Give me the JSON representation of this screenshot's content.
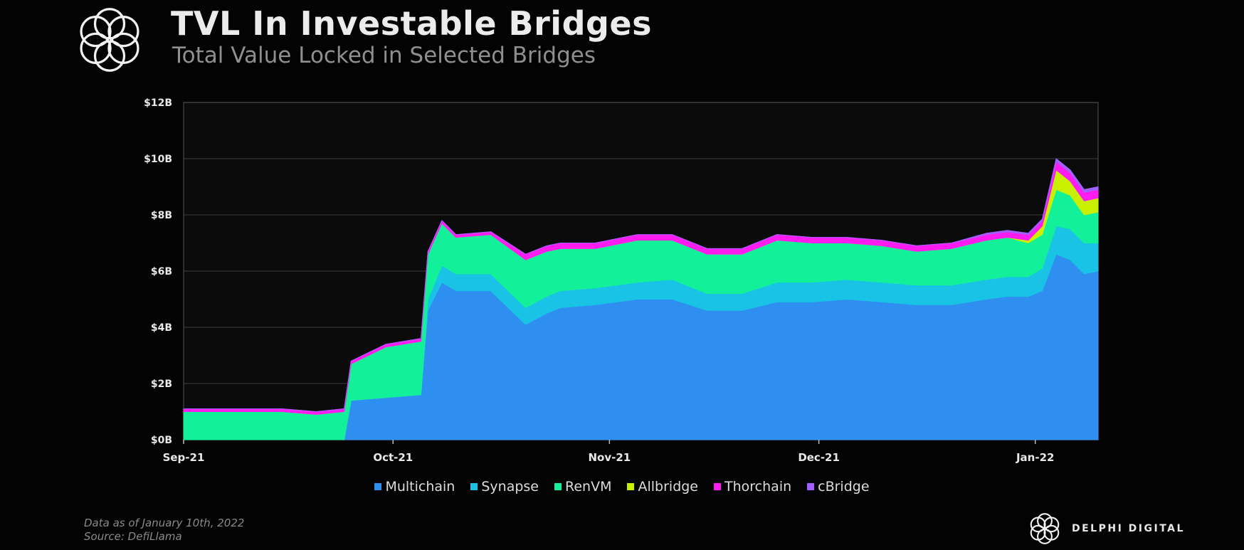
{
  "header": {
    "title": "TVL In Investable Bridges",
    "subtitle": "Total Value Locked in Selected Bridges"
  },
  "chart_data": {
    "type": "area",
    "stacked": true,
    "title": "TVL In Investable Bridges",
    "subtitle": "Total Value Locked in Selected Bridges",
    "x_ticks": [
      "Sep-21",
      "Oct-21",
      "Nov-21",
      "Dec-21",
      "Jan-22"
    ],
    "y_ticks": [
      "$0B",
      "$2B",
      "$4B",
      "$6B",
      "$8B",
      "$10B",
      "$12B"
    ],
    "ylim": [
      0,
      12
    ],
    "y_unit": "$B",
    "grid": "horizontal",
    "legend_position": "bottom",
    "x": [
      "2021-09-01",
      "2021-09-05",
      "2021-09-10",
      "2021-09-15",
      "2021-09-20",
      "2021-09-24",
      "2021-09-25",
      "2021-09-30",
      "2021-10-05",
      "2021-10-06",
      "2021-10-08",
      "2021-10-10",
      "2021-10-15",
      "2021-10-20",
      "2021-10-23",
      "2021-10-25",
      "2021-10-30",
      "2021-11-05",
      "2021-11-10",
      "2021-11-15",
      "2021-11-20",
      "2021-11-25",
      "2021-11-30",
      "2021-12-05",
      "2021-12-10",
      "2021-12-15",
      "2021-12-20",
      "2021-12-25",
      "2021-12-28",
      "2021-12-31",
      "2022-01-02",
      "2022-01-04",
      "2022-01-06",
      "2022-01-08",
      "2022-01-10"
    ],
    "series": [
      {
        "name": "Multichain",
        "color": "#2f8ff0",
        "values": [
          0,
          0,
          0,
          0,
          0,
          0,
          1.4,
          1.5,
          1.6,
          4.6,
          5.6,
          5.3,
          5.3,
          4.1,
          4.5,
          4.7,
          4.8,
          5.0,
          5.0,
          4.6,
          4.6,
          4.9,
          4.9,
          5.0,
          4.9,
          4.8,
          4.8,
          5.0,
          5.1,
          5.1,
          5.3,
          6.6,
          6.4,
          5.9,
          6.0
        ]
      },
      {
        "name": "Synapse",
        "color": "#19c3e6",
        "values": [
          0,
          0,
          0,
          0,
          0,
          0,
          0,
          0,
          0,
          0.4,
          0.6,
          0.6,
          0.6,
          0.6,
          0.6,
          0.6,
          0.6,
          0.6,
          0.7,
          0.6,
          0.6,
          0.7,
          0.7,
          0.7,
          0.7,
          0.7,
          0.7,
          0.7,
          0.7,
          0.7,
          0.8,
          1.0,
          1.1,
          1.1,
          1.0
        ]
      },
      {
        "name": "RenVM",
        "color": "#13f09a",
        "values": [
          1.0,
          1.0,
          1.0,
          1.0,
          0.9,
          1.0,
          1.3,
          1.8,
          1.9,
          1.6,
          1.5,
          1.3,
          1.4,
          1.7,
          1.6,
          1.5,
          1.4,
          1.5,
          1.4,
          1.4,
          1.4,
          1.5,
          1.4,
          1.3,
          1.3,
          1.2,
          1.3,
          1.4,
          1.4,
          1.2,
          1.2,
          1.3,
          1.2,
          1.0,
          1.1
        ]
      },
      {
        "name": "Allbridge",
        "color": "#c8f000",
        "values": [
          0,
          0,
          0,
          0,
          0,
          0,
          0,
          0,
          0,
          0,
          0,
          0,
          0,
          0,
          0,
          0,
          0,
          0,
          0,
          0,
          0,
          0,
          0,
          0,
          0,
          0,
          0,
          0,
          0,
          0.1,
          0.3,
          0.7,
          0.5,
          0.5,
          0.5
        ]
      },
      {
        "name": "Thorchain",
        "color": "#ff1cf0",
        "values": [
          0.1,
          0.1,
          0.1,
          0.1,
          0.1,
          0.1,
          0.1,
          0.1,
          0.1,
          0.1,
          0.1,
          0.1,
          0.1,
          0.2,
          0.2,
          0.2,
          0.2,
          0.2,
          0.2,
          0.2,
          0.2,
          0.2,
          0.2,
          0.2,
          0.2,
          0.2,
          0.2,
          0.2,
          0.2,
          0.2,
          0.2,
          0.3,
          0.3,
          0.3,
          0.3
        ]
      },
      {
        "name": "cBridge",
        "color": "#a060ff",
        "values": [
          0,
          0,
          0,
          0,
          0,
          0,
          0,
          0,
          0,
          0,
          0,
          0,
          0,
          0,
          0,
          0,
          0,
          0,
          0,
          0,
          0,
          0,
          0,
          0,
          0,
          0,
          0,
          0.05,
          0.05,
          0.05,
          0.05,
          0.1,
          0.1,
          0.1,
          0.1
        ]
      }
    ]
  },
  "footer": {
    "note_line1": "Data as of January 10th, 2022",
    "note_line2": "Source: DefiLlama",
    "brand": "DELPHI DIGITAL"
  },
  "colors": {
    "background": "#030303",
    "plot_background": "#0b0b0b",
    "gridline": "#2c2c2c"
  }
}
